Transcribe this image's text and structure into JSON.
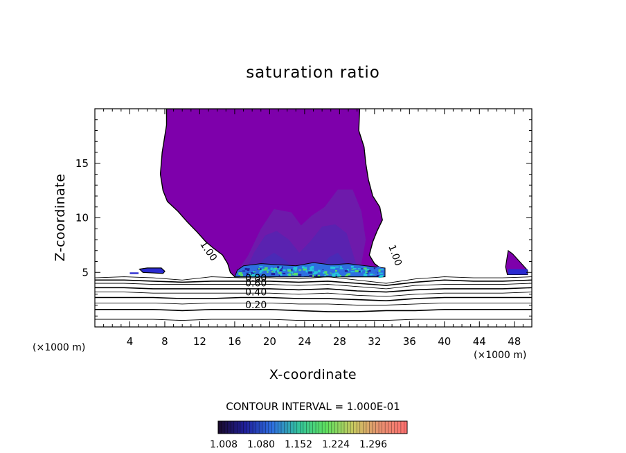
{
  "chart_data": {
    "type": "contour",
    "title": "saturation ratio",
    "xlabel": "X-coordinate",
    "ylabel": "Z-coordinate",
    "xlim": [
      0,
      50
    ],
    "ylim": [
      0,
      20
    ],
    "x_ticks": [
      4,
      8,
      12,
      16,
      20,
      24,
      28,
      32,
      36,
      40,
      44,
      48
    ],
    "y_ticks": [
      5,
      10,
      15
    ],
    "x_unit_left": "(×1000 m)",
    "x_unit_right": "(×1000 m)",
    "contour_interval_text": "CONTOUR INTERVAL = 1.000E-01",
    "contour_labels": [
      {
        "text": "1.00",
        "x": 12.0,
        "y": 7.6
      },
      {
        "text": "1.00",
        "x": 33.6,
        "y": 7.4
      },
      {
        "text": "0.80",
        "x": 17.2,
        "y": 4.2
      },
      {
        "text": "0.60",
        "x": 17.2,
        "y": 3.7
      },
      {
        "text": "0.40",
        "x": 17.2,
        "y": 2.9
      },
      {
        "text": "0.20",
        "x": 17.2,
        "y": 1.7
      }
    ],
    "colorbar": {
      "tick_labels": [
        "1.008",
        "1.080",
        "1.152",
        "1.224",
        "1.296"
      ],
      "colors": [
        "#1a0a2a",
        "#1f1f9a",
        "#2e6fe0",
        "#33c49a",
        "#5fe05f",
        "#c8c860",
        "#e89070",
        "#ff7070"
      ]
    },
    "region_colors": {
      "main": "#7e00ab",
      "level2": "#6e1aab",
      "level3": "#5a22b0",
      "level4": "#4a2ab6",
      "peak": "#2e6fe0",
      "cyan": "#25c8d8",
      "green": "#55dc6a"
    },
    "regions": {
      "plume": [
        [
          8.2,
          20
        ],
        [
          8.2,
          18.5
        ],
        [
          7.7,
          16
        ],
        [
          7.5,
          14
        ],
        [
          7.8,
          12.5
        ],
        [
          8.3,
          11.5
        ],
        [
          9.5,
          10.6
        ],
        [
          10.6,
          9.6
        ],
        [
          11.7,
          8.7
        ],
        [
          12.7,
          7.8
        ],
        [
          13.6,
          7.2
        ],
        [
          14.6,
          6.6
        ],
        [
          15.2,
          5.8
        ],
        [
          15.5,
          5.0
        ],
        [
          16.0,
          4.6
        ],
        [
          33.0,
          4.6
        ],
        [
          33.0,
          5.2
        ],
        [
          32.0,
          5.8
        ],
        [
          31.4,
          6.6
        ],
        [
          31.8,
          7.8
        ],
        [
          32.3,
          8.8
        ],
        [
          32.9,
          9.8
        ],
        [
          32.6,
          11.0
        ],
        [
          31.8,
          12.0
        ],
        [
          31.3,
          13.5
        ],
        [
          31.0,
          15.0
        ],
        [
          30.8,
          16.5
        ],
        [
          30.2,
          18.0
        ],
        [
          30.3,
          20
        ]
      ],
      "blob_left": [
        [
          5.1,
          5.3
        ],
        [
          5.5,
          5.0
        ],
        [
          7.8,
          4.9
        ],
        [
          8.0,
          5.1
        ],
        [
          7.6,
          5.4
        ],
        [
          6.0,
          5.4
        ]
      ],
      "blob_right": [
        [
          47.3,
          7.0
        ],
        [
          47.8,
          6.7
        ],
        [
          48.6,
          6.0
        ],
        [
          49.5,
          5.2
        ],
        [
          49.5,
          4.8
        ],
        [
          47.2,
          4.8
        ],
        [
          47.0,
          5.5
        ]
      ],
      "level2_left": [
        [
          16.2,
          5.0
        ],
        [
          17.5,
          6.5
        ],
        [
          19.0,
          9.0
        ],
        [
          20.5,
          10.8
        ],
        [
          22.5,
          10.5
        ],
        [
          23.6,
          9.3
        ],
        [
          24.8,
          10.2
        ],
        [
          26.3,
          11.0
        ],
        [
          27.8,
          12.6
        ],
        [
          29.5,
          12.6
        ],
        [
          30.5,
          10.6
        ],
        [
          31.0,
          8.0
        ],
        [
          30.5,
          5.8
        ],
        [
          32.5,
          5.0
        ]
      ],
      "level3": [
        [
          17.2,
          5.0
        ],
        [
          18.2,
          6.8
        ],
        [
          19.5,
          8.4
        ],
        [
          20.8,
          8.8
        ],
        [
          22.2,
          8.0
        ],
        [
          23.4,
          6.8
        ],
        [
          24.6,
          7.8
        ],
        [
          26.0,
          9.2
        ],
        [
          27.5,
          9.4
        ],
        [
          28.8,
          8.6
        ],
        [
          29.5,
          6.8
        ],
        [
          30.2,
          5.0
        ]
      ],
      "level4": [
        [
          18.0,
          4.9
        ],
        [
          19.3,
          6.2
        ],
        [
          20.5,
          6.8
        ],
        [
          21.8,
          6.1
        ],
        [
          23.0,
          5.2
        ],
        [
          25.6,
          5.2
        ],
        [
          26.8,
          6.4
        ],
        [
          27.8,
          6.8
        ],
        [
          28.8,
          5.8
        ],
        [
          29.4,
          4.9
        ]
      ],
      "peak_band": [
        [
          16.0,
          4.6
        ],
        [
          33.2,
          4.6
        ],
        [
          33.2,
          5.4
        ],
        [
          31.0,
          5.6
        ],
        [
          29.0,
          5.8
        ],
        [
          27.0,
          5.7
        ],
        [
          25.0,
          5.9
        ],
        [
          23.0,
          5.6
        ],
        [
          21.0,
          5.7
        ],
        [
          19.0,
          5.8
        ],
        [
          17.0,
          5.6
        ],
        [
          16.3,
          5.2
        ]
      ]
    },
    "contour_lines": [
      {
        "level": 0.9,
        "y": [
          4.5,
          4.6,
          4.5,
          4.3,
          4.6,
          4.5,
          4.5,
          4.4,
          4.6,
          4.3,
          4.0,
          4.4,
          4.6,
          4.5,
          4.5,
          4.6
        ]
      },
      {
        "level": 0.8,
        "y": [
          4.3,
          4.3,
          4.2,
          4.1,
          4.2,
          4.2,
          4.2,
          4.1,
          4.2,
          4.0,
          3.8,
          4.1,
          4.3,
          4.2,
          4.2,
          4.3
        ]
      },
      {
        "level": 0.7,
        "y": [
          4.0,
          4.0,
          3.9,
          3.9,
          3.9,
          3.9,
          3.9,
          3.8,
          3.9,
          3.7,
          3.5,
          3.8,
          3.9,
          3.9,
          3.9,
          4.0
        ]
      },
      {
        "level": 0.6,
        "y": [
          3.6,
          3.6,
          3.5,
          3.5,
          3.5,
          3.5,
          3.5,
          3.4,
          3.5,
          3.3,
          3.2,
          3.4,
          3.5,
          3.5,
          3.5,
          3.6
        ]
      },
      {
        "level": 0.5,
        "y": [
          3.2,
          3.2,
          3.1,
          3.1,
          3.1,
          3.1,
          3.1,
          3.0,
          3.1,
          2.9,
          2.8,
          3.0,
          3.1,
          3.1,
          3.1,
          3.2
        ]
      },
      {
        "level": 0.4,
        "y": [
          2.7,
          2.7,
          2.7,
          2.6,
          2.6,
          2.7,
          2.7,
          2.6,
          2.6,
          2.5,
          2.4,
          2.6,
          2.7,
          2.7,
          2.7,
          2.7
        ]
      },
      {
        "level": 0.3,
        "y": [
          2.2,
          2.2,
          2.2,
          2.1,
          2.2,
          2.2,
          2.2,
          2.1,
          2.1,
          2.0,
          2.0,
          2.1,
          2.2,
          2.2,
          2.2,
          2.2
        ]
      },
      {
        "level": 0.2,
        "y": [
          1.6,
          1.6,
          1.6,
          1.5,
          1.6,
          1.6,
          1.6,
          1.5,
          1.4,
          1.4,
          1.5,
          1.5,
          1.6,
          1.6,
          1.6,
          1.6
        ]
      },
      {
        "level": 0.1,
        "y": [
          0.7,
          0.7,
          0.7,
          0.6,
          0.7,
          0.7,
          0.7,
          0.6,
          0.6,
          0.6,
          0.6,
          0.7,
          0.7,
          0.7,
          0.7,
          0.7
        ]
      }
    ]
  }
}
